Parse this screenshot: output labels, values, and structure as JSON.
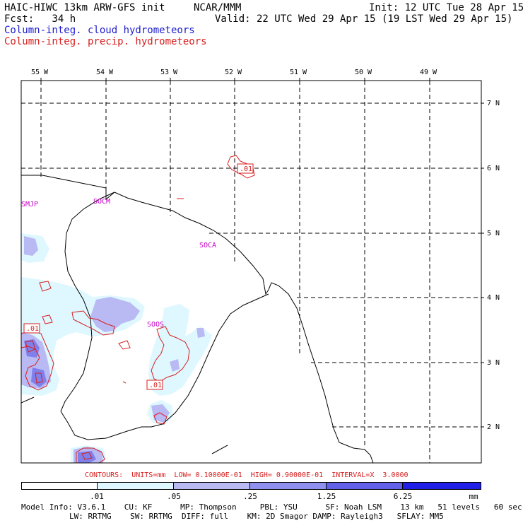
{
  "header": {
    "model_line": "HAIC-HIWC 13km ARW-GFS init",
    "center": "NCAR/MMM",
    "init": "Init: 12 UTC Tue 28 Apr 15",
    "fcst": "Fcst:   34 h",
    "valid": "Valid: 22 UTC Wed 29 Apr 15 (19 LST Wed 29 Apr 15)",
    "field_cloud": "Column-integ. cloud hydrometeors",
    "field_precip": "Column-integ. precip. hydrometeors"
  },
  "map": {
    "lon_labels": [
      "55 W",
      "54 W",
      "53 W",
      "52 W",
      "51 W",
      "50 W",
      "49 W"
    ],
    "lat_labels": [
      "7 N",
      "6 N",
      "5 N",
      "4 N",
      "3 N",
      "2 N"
    ],
    "stations": [
      "SMJP",
      "SOCM",
      "SOCA",
      "SOOS"
    ],
    "contour_labels": [
      ".01",
      ".01",
      ".01"
    ],
    "colors": {
      "cloud_light": "#dff8ff",
      "cloud_mid": "#b9b9f4",
      "cloud_dark": "#6e6ee8",
      "precip": "#d81e1e",
      "station": "#c400c4"
    }
  },
  "contours_line": "CONTOURS:  UNITS=mm  LOW= 0.10000E-01  HIGH= 0.90000E-01  INTERVAL=X  3.0000",
  "legend": {
    "labels": [
      ".01",
      ".05",
      ".25",
      "1.25",
      "6.25"
    ],
    "unit": "mm",
    "colors": [
      "#ffffff",
      "#dff8ff",
      "#b9b9f4",
      "#9090ee",
      "#6262e8",
      "#2020e6"
    ]
  },
  "model_info": {
    "line1": "Model Info: V3.6.1    CU: KF      MP: Thompson     PBL: YSU      SF: Noah LSM    13 km   51 levels   60 sec",
    "line2": "LW: RRTMG    SW: RRTMG  DIFF: full    KM: 2D Smagor DAMP: Rayleigh3   SFLAY: MM5"
  }
}
